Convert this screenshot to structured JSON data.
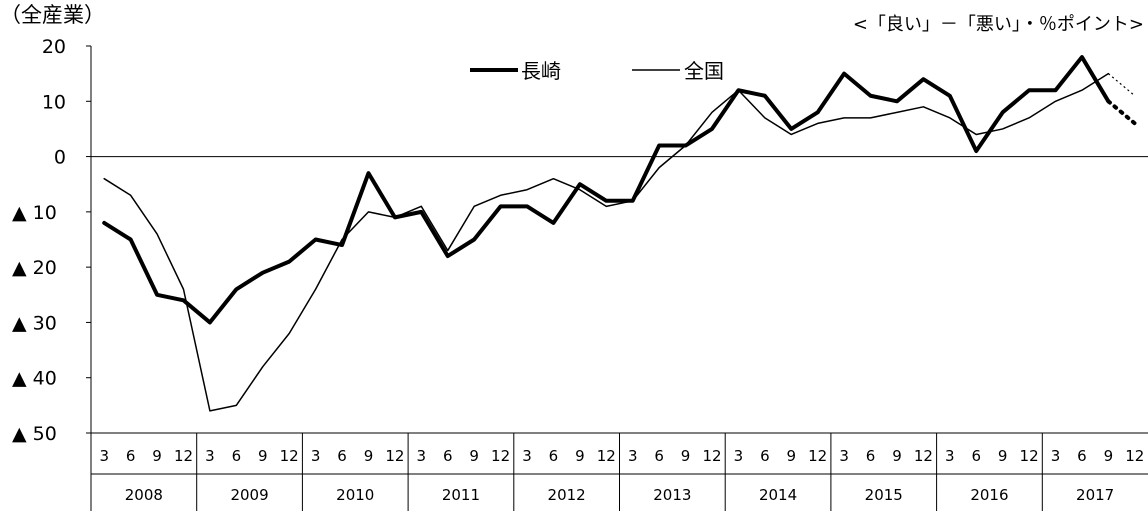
{
  "chart_data": {
    "type": "line",
    "title": "",
    "panel_label": "（全産業）",
    "unit_note": "<「良い」－「悪い」・％ポイント>",
    "xlabel": "",
    "ylabel": "",
    "ylim": [
      -50,
      20
    ],
    "y_ticks": [
      {
        "value": 20,
        "label": "20"
      },
      {
        "value": 10,
        "label": "10"
      },
      {
        "value": 0,
        "label": "0"
      },
      {
        "value": -10,
        "label": "▲ 10"
      },
      {
        "value": -20,
        "label": "▲ 20"
      },
      {
        "value": -30,
        "label": "▲ 30"
      },
      {
        "value": -40,
        "label": "▲ 40"
      },
      {
        "value": -50,
        "label": "▲ 50"
      }
    ],
    "months": [
      "3",
      "6",
      "9",
      "12"
    ],
    "years": [
      "2008",
      "2009",
      "2010",
      "2011",
      "2012",
      "2013",
      "2014",
      "2015",
      "2016",
      "2017"
    ],
    "grid": false,
    "legend_position": "top-center",
    "series": [
      {
        "name": "長崎",
        "style": "thick",
        "color": "#000000",
        "values": [
          -12,
          -15,
          -25,
          -26,
          -30,
          -24,
          -21,
          -19,
          -15,
          -16,
          -3,
          -11,
          -10,
          -18,
          -15,
          -9,
          -9,
          -12,
          -5,
          -8,
          -8,
          2,
          2,
          5,
          12,
          11,
          5,
          8,
          15,
          11,
          10,
          14,
          11,
          1,
          8,
          12,
          12,
          18,
          10
        ],
        "forecast_values": [
          10,
          6
        ]
      },
      {
        "name": "全国",
        "style": "thin",
        "color": "#000000",
        "values": [
          -4,
          -7,
          -14,
          -24,
          -46,
          -45,
          -38,
          -32,
          -24,
          -15,
          -10,
          -11,
          -9,
          -17,
          -9,
          -7,
          -6,
          -4,
          -6,
          -9,
          -8,
          -2,
          2,
          8,
          12,
          7,
          4,
          6,
          7,
          7,
          8,
          9,
          7,
          4,
          5,
          7,
          10,
          12,
          15
        ],
        "forecast_values": [
          15,
          11
        ]
      }
    ]
  }
}
